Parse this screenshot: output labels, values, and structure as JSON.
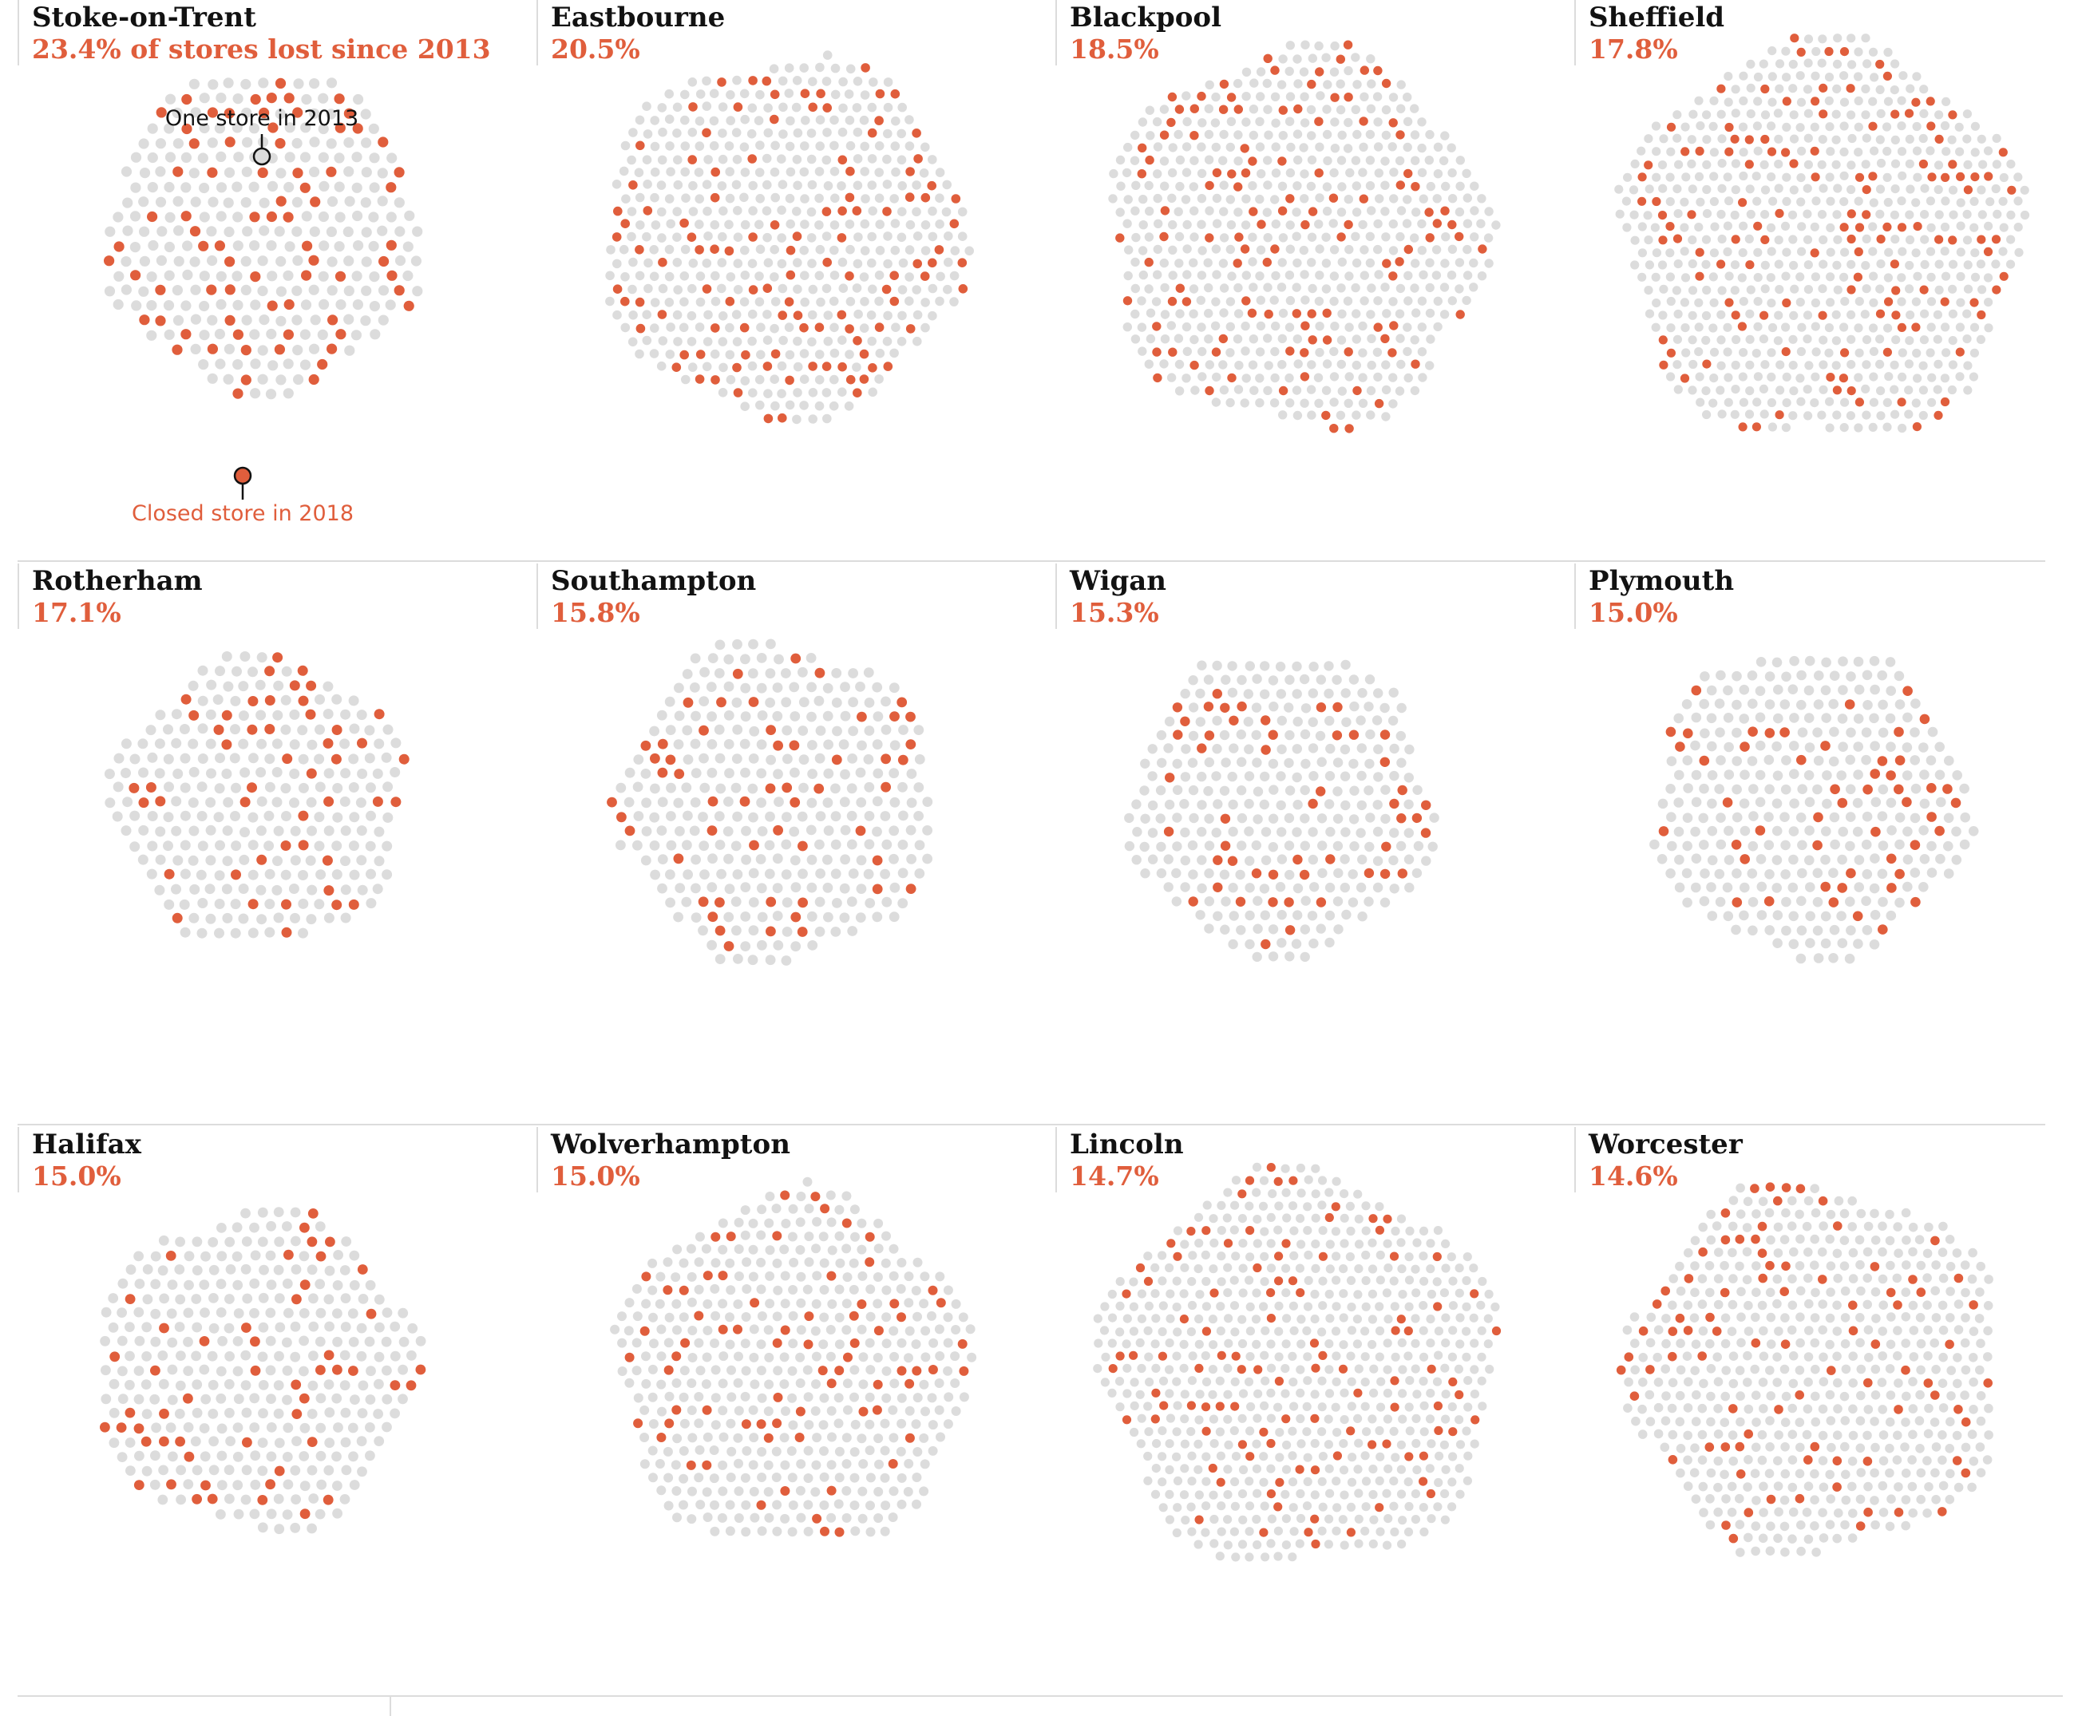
{
  "colors": {
    "open_store": "#dcdcdc",
    "closed_store": "#e05e3c",
    "title_text": "#121212",
    "rule": "#dcdcdc"
  },
  "annotations": {
    "one_store": "One store in 2013",
    "closed_store": "Closed store in 2018"
  },
  "chart_data": {
    "type": "scatter",
    "description_unit": "share of stores closed since 2013",
    "panels": [
      {
        "city": "Stoke-on-Trent",
        "label": "23.4% of stores lost since 2013",
        "percent_lost": 23.4
      },
      {
        "city": "Eastbourne",
        "label": "20.5%",
        "percent_lost": 20.5
      },
      {
        "city": "Blackpool",
        "label": "18.5%",
        "percent_lost": 18.5
      },
      {
        "city": "Sheffield",
        "label": "17.8%",
        "percent_lost": 17.8
      },
      {
        "city": "Rotherham",
        "label": "17.1%",
        "percent_lost": 17.1
      },
      {
        "city": "Southampton",
        "label": "15.8%",
        "percent_lost": 15.8
      },
      {
        "city": "Wigan",
        "label": "15.3%",
        "percent_lost": 15.3
      },
      {
        "city": "Plymouth",
        "label": "15.0%",
        "percent_lost": 15.0
      },
      {
        "city": "Halifax",
        "label": "15.0%",
        "percent_lost": 15.0
      },
      {
        "city": "Wolverhampton",
        "label": "15.0%",
        "percent_lost": 15.0
      },
      {
        "city": "Lincoln",
        "label": "14.7%",
        "percent_lost": 14.7
      },
      {
        "city": "Worcester",
        "label": "14.6%",
        "percent_lost": 14.6
      }
    ]
  }
}
